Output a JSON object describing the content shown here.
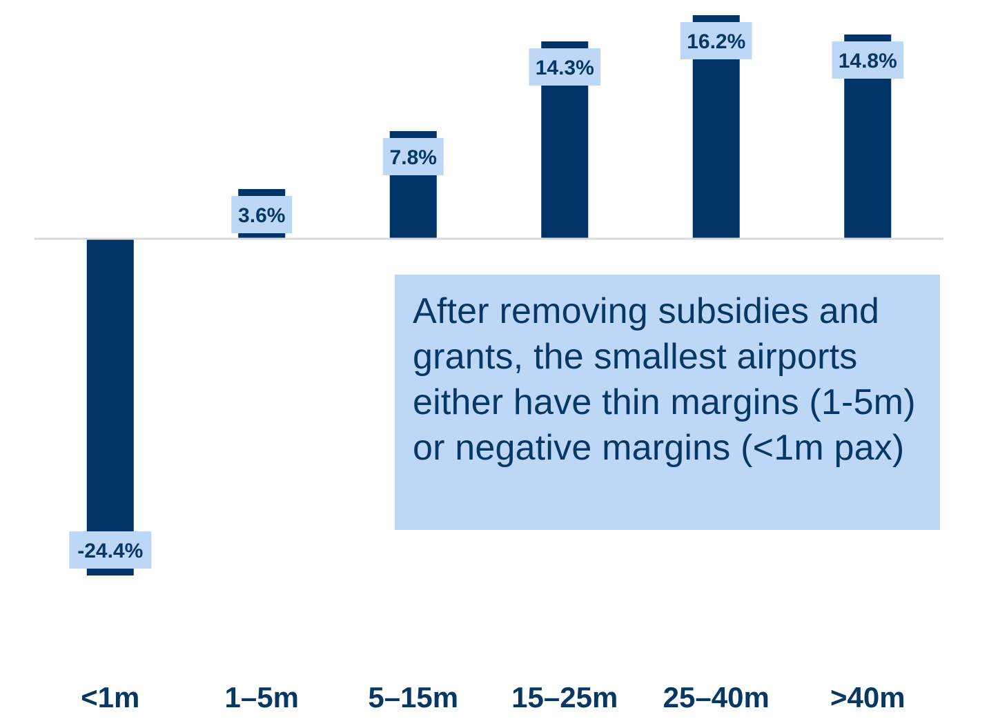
{
  "chart_data": {
    "type": "bar",
    "categories": [
      "<1m",
      "1–5m",
      "5–15m",
      "15–25m",
      "25–40m",
      ">40m"
    ],
    "values": [
      -24.4,
      3.6,
      7.8,
      14.3,
      16.2,
      14.8
    ],
    "value_labels": [
      "-24.4%",
      "3.6%",
      "7.8%",
      "14.3%",
      "16.2%",
      "14.8%"
    ],
    "title": "",
    "xlabel": "",
    "ylabel": "",
    "ylim": [
      -32,
      17
    ],
    "grid": false,
    "legend": "none",
    "bar_color": "#003466",
    "label_box_color": "#bdd7f7",
    "baseline_color": "#d9d9d9",
    "label_text_color": "#073763"
  },
  "annotation": {
    "text": "After removing subsidies and grants, the smallest airports either have thin margins (1-5m) or negative margins (<1m pax)"
  }
}
